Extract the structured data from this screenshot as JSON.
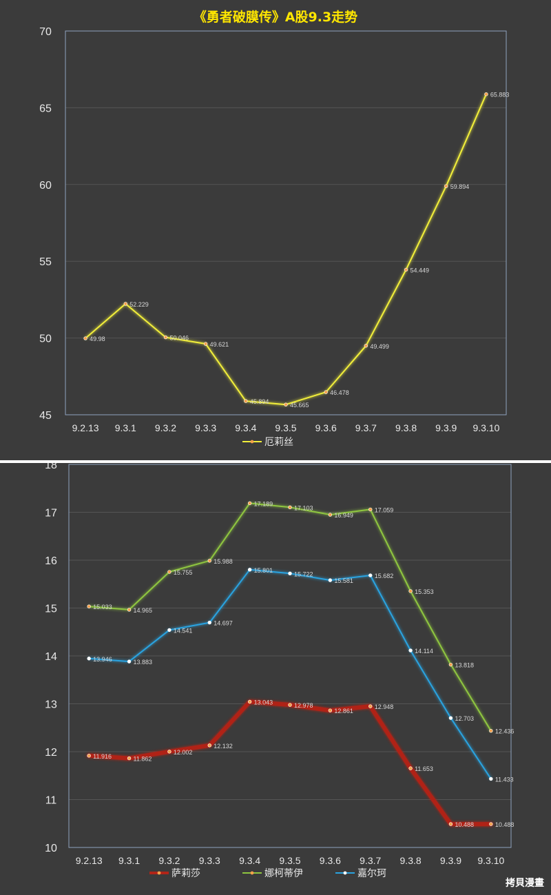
{
  "watermark": "拷貝漫畫",
  "chart_data": [
    {
      "type": "line",
      "title": "《勇者破膜传》A股9.3走势",
      "categories": [
        "9.2.13",
        "9.3.1",
        "9.3.2",
        "9.3.3",
        "9.3.4",
        "9.3.5",
        "9.3.6",
        "9.3.7",
        "9.3.8",
        "9.3.9",
        "9.3.10"
      ],
      "ylim": [
        45,
        70
      ],
      "yticks": [
        45,
        50,
        55,
        60,
        65,
        70
      ],
      "grid": true,
      "legend_position": "bottom",
      "series": [
        {
          "name": "厄莉丝",
          "color": "#f2ef3a",
          "values": [
            49.98,
            52.229,
            50.046,
            49.621,
            45.894,
            45.665,
            46.478,
            49.499,
            54.449,
            59.894,
            65.883
          ],
          "labels": [
            "49.98",
            "52.229",
            "50.046",
            "49.621",
            "45.894",
            "45.665",
            "46.478",
            "49.499",
            "54.449",
            "59.894",
            "65.883"
          ]
        }
      ]
    },
    {
      "type": "line",
      "title": "",
      "categories": [
        "9.2.13",
        "9.3.1",
        "9.3.2",
        "9.3.3",
        "9.3.4",
        "9.3.5",
        "9.3.6",
        "9.3.7",
        "9.3.8",
        "9.3.9",
        "9.3.10"
      ],
      "ylim": [
        10,
        18
      ],
      "yticks": [
        10,
        11,
        12,
        13,
        14,
        15,
        16,
        17,
        18
      ],
      "grid": true,
      "legend_position": "bottom",
      "series": [
        {
          "name": "萨莉莎",
          "color": "#b02418",
          "values": [
            11.916,
            11.862,
            12.002,
            12.132,
            13.043,
            12.978,
            12.861,
            12.948,
            11.653,
            10.488,
            10.488
          ],
          "labels": [
            "11.916",
            "11.862",
            "12.002",
            "12.132",
            "13.043",
            "12.978",
            "12.861",
            "12.948",
            "11.653",
            "10.488",
            "10.488"
          ]
        },
        {
          "name": "娜柯蒂伊",
          "color": "#8fc63f",
          "values": [
            15.033,
            14.965,
            15.755,
            15.988,
            17.189,
            17.103,
            16.949,
            17.059,
            15.353,
            13.818,
            12.436
          ],
          "labels": [
            "15.033",
            "14.965",
            "15.755",
            "15.988",
            "17.189",
            "17.103",
            "16.949",
            "17.059",
            "15.353",
            "13.818",
            "12.436"
          ]
        },
        {
          "name": "嘉尔珂",
          "color": "#29a3e0",
          "values": [
            13.946,
            13.883,
            14.541,
            14.697,
            15.801,
            15.722,
            15.581,
            15.682,
            14.114,
            12.703,
            11.433
          ],
          "labels": [
            "13.946",
            "13.883",
            "14.541",
            "14.697",
            "15.801",
            "15.722",
            "15.581",
            "15.682",
            "14.114",
            "12.703",
            "11.433"
          ]
        }
      ]
    }
  ]
}
